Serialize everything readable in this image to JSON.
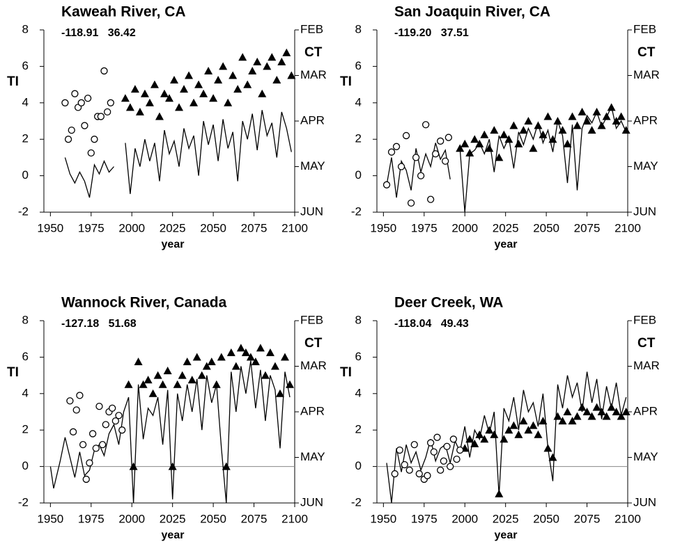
{
  "chart_data": [
    {
      "type": "line",
      "title": "Kaweah River, CA",
      "subtitle": "-118.91   36.42",
      "ylabel": "TI",
      "y2label": "CT",
      "xlabel": "year",
      "xlim": [
        1946,
        2100
      ],
      "xticks": [
        1950,
        1975,
        2000,
        2025,
        2050,
        2075,
        2100
      ],
      "ylim": [
        -2,
        8
      ],
      "yticks": [
        -2,
        0,
        2,
        4,
        6,
        8
      ],
      "y2lim": [
        6,
        2
      ],
      "y2ticks": [
        {
          "value": 2,
          "label": "FEB"
        },
        {
          "value": 3,
          "label": "MAR"
        },
        {
          "value": 4,
          "label": "APR"
        },
        {
          "value": 5,
          "label": "MAY"
        },
        {
          "value": 6,
          "label": "JUN"
        }
      ],
      "zero_line": false,
      "series": [
        {
          "marker": "none",
          "color": "#000000",
          "x": [
            1959,
            1962,
            1965,
            1968,
            1971,
            1974,
            1977,
            1980,
            1983,
            1986,
            1989,
            1992,
            1996,
            1999,
            2002,
            2005,
            2008,
            2011,
            2014,
            2017,
            2020,
            2023,
            2026,
            2029,
            2032,
            2035,
            2038,
            2041,
            2044,
            2047,
            2050,
            2053,
            2056,
            2059,
            2062,
            2065,
            2068,
            2071,
            2074,
            2077,
            2080,
            2083,
            2086,
            2089,
            2092,
            2095,
            2098
          ],
          "values": [
            1.0,
            0.1,
            -0.4,
            0.2,
            -0.3,
            -1.2,
            0.6,
            0.1,
            0.8,
            0.2,
            0.5,
            null,
            1.8,
            -1.0,
            1.5,
            0.5,
            2.0,
            0.8,
            1.8,
            -0.3,
            2.5,
            1.2,
            1.9,
            0.5,
            2.6,
            1.5,
            2.2,
            0.0,
            3.0,
            1.7,
            2.8,
            0.8,
            3.1,
            1.5,
            2.4,
            -0.3,
            3.0,
            2.0,
            3.4,
            1.4,
            3.6,
            2.2,
            2.9,
            1.0,
            3.5,
            2.6,
            1.3
          ]
        },
        {
          "marker": "triangle",
          "color": "#000000",
          "axis": "y2",
          "x": [
            1996,
            1999,
            2002,
            2005,
            2008,
            2011,
            2014,
            2017,
            2020,
            2023,
            2026,
            2029,
            2032,
            2035,
            2038,
            2041,
            2044,
            2047,
            2050,
            2053,
            2056,
            2059,
            2062,
            2065,
            2068,
            2071,
            2074,
            2077,
            2080,
            2083,
            2086,
            2089,
            2092,
            2095,
            2098
          ],
          "values": [
            3.5,
            3.7,
            3.3,
            3.8,
            3.4,
            3.6,
            3.2,
            3.9,
            3.4,
            3.5,
            3.1,
            3.7,
            3.3,
            3.0,
            3.6,
            3.2,
            3.4,
            2.9,
            3.5,
            3.1,
            2.8,
            3.6,
            3.0,
            3.3,
            2.6,
            3.2,
            2.9,
            2.7,
            3.4,
            2.8,
            2.6,
            3.1,
            2.7,
            2.5,
            3.0
          ]
        },
        {
          "marker": "circle",
          "color": "#000000",
          "axis": "y2",
          "x": [
            1959,
            1961,
            1963,
            1965,
            1967,
            1969,
            1971,
            1973,
            1975,
            1977,
            1979,
            1981,
            1983,
            1985,
            1987
          ],
          "values": [
            3.6,
            4.4,
            4.2,
            3.4,
            3.7,
            3.6,
            4.1,
            3.5,
            4.7,
            4.4,
            3.9,
            3.9,
            2.9,
            3.8,
            3.6
          ]
        }
      ]
    },
    {
      "type": "line",
      "title": "San Joaquin River, CA",
      "subtitle": "-119.20   37.51",
      "ylabel": "TI",
      "y2label": "CT",
      "xlabel": "year",
      "xlim": [
        1946,
        2100
      ],
      "xticks": [
        1950,
        1975,
        2000,
        2025,
        2050,
        2075,
        2100
      ],
      "ylim": [
        -2,
        8
      ],
      "yticks": [
        -2,
        0,
        2,
        4,
        6,
        8
      ],
      "y2lim": [
        6,
        2
      ],
      "y2ticks": [
        {
          "value": 2,
          "label": "FEB"
        },
        {
          "value": 3,
          "label": "MAR"
        },
        {
          "value": 4,
          "label": "APR"
        },
        {
          "value": 5,
          "label": "MAY"
        },
        {
          "value": 6,
          "label": "JUN"
        }
      ],
      "zero_line": false,
      "series": [
        {
          "marker": "none",
          "color": "#000000",
          "x": [
            1952,
            1955,
            1958,
            1961,
            1964,
            1967,
            1970,
            1973,
            1976,
            1979,
            1982,
            1985,
            1988,
            1991,
            1994,
            1997,
            2000,
            2003,
            2006,
            2009,
            2012,
            2015,
            2018,
            2021,
            2024,
            2027,
            2030,
            2033,
            2036,
            2039,
            2042,
            2045,
            2048,
            2051,
            2054,
            2057,
            2060,
            2063,
            2066,
            2069,
            2072,
            2075,
            2078,
            2081,
            2084,
            2087,
            2090,
            2093,
            2096,
            2099
          ],
          "values": [
            -0.5,
            1.0,
            -1.2,
            0.8,
            0.3,
            -0.8,
            1.5,
            0.2,
            1.2,
            0.5,
            1.8,
            0.9,
            1.4,
            -0.2,
            null,
            1.5,
            -2.0,
            1.2,
            1.4,
            1.8,
            1.2,
            2.0,
            0.2,
            2.2,
            1.5,
            2.1,
            0.4,
            2.4,
            1.7,
            2.6,
            2.0,
            2.9,
            1.8,
            2.5,
            1.3,
            3.0,
            2.2,
            -0.4,
            2.8,
            -0.8,
            2.6,
            3.3,
            2.9,
            3.5,
            2.7,
            3.2,
            3.8,
            2.6,
            3.0,
            2.4
          ]
        },
        {
          "marker": "triangle",
          "color": "#000000",
          "axis": "y2",
          "x": [
            1997,
            2000,
            2003,
            2006,
            2009,
            2012,
            2015,
            2018,
            2021,
            2024,
            2027,
            2030,
            2033,
            2036,
            2039,
            2042,
            2045,
            2048,
            2051,
            2054,
            2057,
            2060,
            2063,
            2066,
            2069,
            2072,
            2075,
            2078,
            2081,
            2084,
            2087,
            2090,
            2093,
            2096,
            2099
          ],
          "values": [
            4.6,
            4.5,
            4.7,
            4.4,
            4.5,
            4.3,
            4.6,
            4.2,
            4.8,
            4.3,
            4.4,
            4.1,
            4.5,
            4.2,
            4.0,
            4.6,
            4.1,
            4.3,
            3.9,
            4.4,
            4.0,
            4.2,
            4.5,
            3.9,
            4.1,
            3.8,
            4.0,
            4.2,
            3.8,
            4.1,
            3.9,
            3.7,
            4.0,
            3.9,
            4.2
          ]
        },
        {
          "marker": "circle",
          "color": "#000000",
          "axis": "y2",
          "x": [
            1952,
            1955,
            1958,
            1961,
            1964,
            1967,
            1970,
            1973,
            1976,
            1979,
            1982,
            1985,
            1988,
            1990
          ],
          "values": [
            5.4,
            4.68,
            4.56,
            5.0,
            4.32,
            5.8,
            4.8,
            5.2,
            4.08,
            5.72,
            4.72,
            4.44,
            4.88,
            4.36
          ]
        }
      ]
    },
    {
      "type": "line",
      "title": "Wannock River, Canada",
      "subtitle": "-127.18   51.68",
      "ylabel": "TI",
      "y2label": "CT",
      "xlabel": "year",
      "xlim": [
        1946,
        2100
      ],
      "xticks": [
        1950,
        1975,
        2000,
        2025,
        2050,
        2075,
        2100
      ],
      "ylim": [
        -2,
        8
      ],
      "yticks": [
        -2,
        0,
        2,
        4,
        6,
        8
      ],
      "y2lim": [
        6,
        2
      ],
      "y2ticks": [
        {
          "value": 2,
          "label": "FEB"
        },
        {
          "value": 3,
          "label": "MAR"
        },
        {
          "value": 4,
          "label": "APR"
        },
        {
          "value": 5,
          "label": "MAY"
        },
        {
          "value": 6,
          "label": "JUN"
        }
      ],
      "zero_line": true,
      "series": [
        {
          "marker": "none",
          "color": "#000000",
          "x": [
            1950,
            1952,
            1956,
            1959,
            1962,
            1965,
            1968,
            1971,
            1974,
            1977,
            1980,
            1983,
            1986,
            1989,
            1992,
            1995,
            1998,
            2001,
            2004,
            2007,
            2010,
            2013,
            2016,
            2019,
            2022,
            2025,
            2028,
            2031,
            2034,
            2037,
            2040,
            2043,
            2046,
            2049,
            2052,
            2055,
            2058,
            2061,
            2064,
            2067,
            2070,
            2073,
            2076,
            2079,
            2082,
            2085,
            2088,
            2091,
            2094,
            2097
          ],
          "values": [
            0.0,
            -1.2,
            0.3,
            1.6,
            0.5,
            -0.6,
            0.8,
            -0.5,
            -0.2,
            0.9,
            1.2,
            0.6,
            1.8,
            2.3,
            1.2,
            3.0,
            3.8,
            -2.0,
            4.5,
            1.5,
            3.2,
            2.8,
            3.8,
            1.2,
            4.2,
            -1.8,
            4.0,
            2.5,
            4.5,
            3.0,
            4.8,
            2.0,
            5.0,
            3.5,
            4.5,
            1.0,
            -2.0,
            5.2,
            3.0,
            5.5,
            4.0,
            5.8,
            3.2,
            5.3,
            2.5,
            5.0,
            4.2,
            1.0,
            5.2,
            3.8
          ]
        },
        {
          "marker": "triangle",
          "color": "#000000",
          "axis": "y2",
          "x": [
            1998,
            2001,
            2004,
            2007,
            2010,
            2013,
            2016,
            2019,
            2022,
            2025,
            2028,
            2031,
            2034,
            2037,
            2040,
            2043,
            2046,
            2049,
            2052,
            2055,
            2058,
            2061,
            2064,
            2067,
            2070,
            2073,
            2076,
            2079,
            2082,
            2085,
            2088,
            2091,
            2094,
            2097
          ],
          "values": [
            3.4,
            5.2,
            2.9,
            3.4,
            3.3,
            3.6,
            3.2,
            3.4,
            3.1,
            5.2,
            3.4,
            3.2,
            2.9,
            3.3,
            2.8,
            3.2,
            3.0,
            2.9,
            3.4,
            2.8,
            5.2,
            2.7,
            3.0,
            2.6,
            2.7,
            2.8,
            2.9,
            2.6,
            3.2,
            2.7,
            3.0,
            3.6,
            2.8,
            3.4
          ]
        },
        {
          "marker": "circle",
          "color": "#000000",
          "axis": "y2",
          "x": [
            1962,
            1964,
            1966,
            1968,
            1970,
            1972,
            1974,
            1976,
            1978,
            1980,
            1982,
            1984,
            1986,
            1988,
            1990,
            1992,
            1994
          ],
          "values": [
            3.76,
            4.44,
            3.96,
            3.64,
            4.72,
            5.48,
            5.12,
            4.48,
            4.8,
            3.88,
            4.72,
            4.28,
            4.0,
            3.92,
            4.2,
            4.08,
            4.4
          ]
        }
      ]
    },
    {
      "type": "line",
      "title": "Deer Creek, WA",
      "subtitle": "-118.04   49.43",
      "ylabel": "TI",
      "y2label": "CT",
      "xlabel": "year",
      "xlim": [
        1946,
        2100
      ],
      "xticks": [
        1950,
        1975,
        2000,
        2025,
        2050,
        2075,
        2100
      ],
      "ylim": [
        -2,
        8
      ],
      "yticks": [
        -2,
        0,
        2,
        4,
        6,
        8
      ],
      "y2lim": [
        6,
        2
      ],
      "y2ticks": [
        {
          "value": 2,
          "label": "FEB"
        },
        {
          "value": 3,
          "label": "MAR"
        },
        {
          "value": 4,
          "label": "APR"
        },
        {
          "value": 5,
          "label": "MAY"
        },
        {
          "value": 6,
          "label": "JUN"
        }
      ],
      "zero_line": true,
      "series": [
        {
          "marker": "none",
          "color": "#000000",
          "x": [
            1952,
            1955,
            1958,
            1961,
            1964,
            1967,
            1970,
            1973,
            1976,
            1979,
            1982,
            1985,
            1988,
            1991,
            1994,
            1997,
            2000,
            2003,
            2006,
            2009,
            2012,
            2015,
            2018,
            2021,
            2024,
            2027,
            2030,
            2033,
            2036,
            2039,
            2042,
            2045,
            2048,
            2051,
            2054,
            2057,
            2060,
            2063,
            2066,
            2069,
            2072,
            2075,
            2078,
            2081,
            2084,
            2087,
            2090,
            2093,
            2096,
            2099
          ],
          "values": [
            0.2,
            -2.0,
            1.0,
            -0.3,
            1.2,
            0.2,
            0.8,
            -0.2,
            0.5,
            1.5,
            0.3,
            1.0,
            1.2,
            0.2,
            1.4,
            0.8,
            2.2,
            0.5,
            2.0,
            1.5,
            2.8,
            1.8,
            3.0,
            -1.6,
            3.2,
            2.5,
            3.8,
            2.0,
            4.2,
            3.0,
            3.5,
            2.2,
            4.0,
            1.0,
            -0.8,
            4.5,
            3.2,
            5.0,
            3.8,
            4.6,
            3.0,
            5.2,
            3.5,
            4.8,
            2.6,
            4.4,
            3.2,
            4.6,
            2.8,
            3.8
          ]
        },
        {
          "marker": "triangle",
          "color": "#000000",
          "axis": "y2",
          "x": [
            2000,
            2003,
            2006,
            2009,
            2012,
            2015,
            2018,
            2021,
            2024,
            2027,
            2030,
            2033,
            2036,
            2039,
            2042,
            2045,
            2048,
            2051,
            2054,
            2057,
            2060,
            2063,
            2066,
            2069,
            2072,
            2075,
            2078,
            2081,
            2084,
            2087,
            2090,
            2093,
            2096,
            2099
          ],
          "values": [
            4.8,
            4.6,
            4.7,
            4.5,
            4.6,
            4.4,
            4.5,
            5.8,
            4.6,
            4.4,
            4.3,
            4.5,
            4.2,
            4.4,
            4.3,
            4.5,
            4.2,
            4.8,
            5.0,
            4.1,
            4.2,
            4.0,
            4.2,
            4.1,
            3.9,
            4.0,
            4.1,
            3.9,
            4.0,
            4.1,
            3.9,
            4.0,
            4.1,
            4.0
          ]
        },
        {
          "marker": "circle",
          "color": "#000000",
          "axis": "y2",
          "x": [
            1957,
            1960,
            1963,
            1966,
            1969,
            1972,
            1975,
            1977,
            1979,
            1981,
            1983,
            1985,
            1987,
            1989,
            1991,
            1993,
            1995,
            1997
          ],
          "values": [
            5.36,
            4.84,
            5.16,
            5.28,
            4.72,
            5.36,
            5.48,
            5.4,
            4.68,
            4.88,
            4.56,
            5.28,
            5.08,
            4.76,
            5.2,
            4.6,
            5.04,
            4.84
          ]
        }
      ]
    }
  ]
}
